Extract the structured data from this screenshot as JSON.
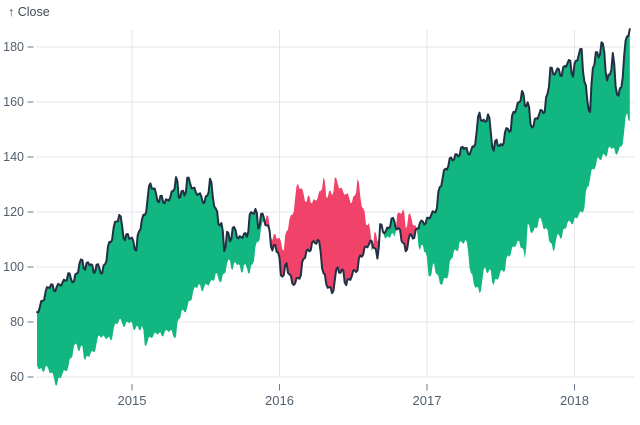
{
  "chart_data": {
    "type": "area",
    "variant": "difference-band",
    "title": "",
    "y_axis_label": "↑ Close",
    "series_name": "Close",
    "xlabel": "",
    "ylabel": "Close",
    "x_ticks": [
      "2015",
      "2016",
      "2017",
      "2018"
    ],
    "y_ticks": [
      60,
      80,
      100,
      120,
      140,
      160,
      180
    ],
    "xlim_years": [
      2014.34,
      2018.42
    ],
    "ylim": [
      55,
      192
    ],
    "grid": true,
    "legend": "none",
    "colors": {
      "positive_fill": "#12b681",
      "negative_fill": "#f1426a",
      "line": "#223044",
      "grid": "#e2e6eb",
      "tick_text": "#525e6d",
      "tick_mark": "#6d7888",
      "axis_label_text": "#3e4a58",
      "background": "#ffffff"
    },
    "x_start_year": 2013.3558,
    "x_step_years": 0.0192308,
    "comparison_shift_weeks": 52,
    "values": [
      64.3,
      63.0,
      62.0,
      63.7,
      63.0,
      61.5,
      59.6,
      56.9,
      59.8,
      61.2,
      62.3,
      63.5,
      66.8,
      71.2,
      71.8,
      69.5,
      71.3,
      66.1,
      67.5,
      68.9,
      69.0,
      72.1,
      75.1,
      74.7,
      74.2,
      74.4,
      73.2,
      77.5,
      79.4,
      80.9,
      79.6,
      78.4,
      80.0,
      80.1,
      77.3,
      78.4,
      77.1,
      78.6,
      71.5,
      73.0,
      74.5,
      75.0,
      75.9,
      76.0,
      74.9,
      76.3,
      76.8,
      77.0,
      75.0,
      74.6,
      81.1,
      84.1,
      83.6,
      85.4,
      87.7,
      90.8,
      92.6,
      93.7,
      91.3,
      92.9,
      93.5,
      94.4,
      95.0,
      97.7,
      95.6,
      94.7,
      97.6,
      101.3,
      102.5,
      99.0,
      101.7,
      101.0,
      97.9,
      100.8,
      99.6,
      97.7,
      101.0,
      107.3,
      109.0,
      114.2,
      116.5,
      118.9,
      115.0,
      109.7,
      112.0,
      110.4,
      109.3,
      106.0,
      113.0,
      117.2,
      118.9,
      124.8,
      130.4,
      128.5,
      126.6,
      123.6,
      125.9,
      123.2,
      124.4,
      125.3,
      127.6,
      132.7,
      125.2,
      127.6,
      126.0,
      132.5,
      130.3,
      128.7,
      127.2,
      126.6,
      125.4,
      123.3,
      125.9,
      132.1,
      125.5,
      121.3,
      115.5,
      116.0,
      105.8,
      112.8,
      109.3,
      114.2,
      113.5,
      110.4,
      110.8,
      112.1,
      111.0,
      119.1,
      119.5,
      121.1,
      114.0,
      119.3,
      117.8,
      115.1,
      113.2,
      106.0,
      108.0,
      105.3,
      97.0,
      97.1,
      101.4,
      97.3,
      94.0,
      94.0,
      96.0,
      96.9,
      103.0,
      105.9,
      105.7,
      109.0,
      108.7,
      109.9,
      105.7,
      97.8,
      93.7,
      92.7,
      90.5,
      95.2,
      99.9,
      97.9,
      98.8,
      93.4,
      95.6,
      96.7,
      98.8,
      98.7,
      104.2,
      104.5,
      107.5,
      108.2,
      109.4,
      106.9,
      103.1,
      115.6,
      112.7,
      113.1,
      114.1,
      117.6,
      116.6,
      113.7,
      113.5,
      108.8,
      105.7,
      110.1,
      111.8,
      110.5,
      114.0,
      116.0,
      116.5,
      115.8,
      117.9,
      119.0,
      120.0,
      121.4,
      129.1,
      132.1,
      135.7,
      136.7,
      139.8,
      139.1,
      141.0,
      140.6,
      143.7,
      143.3,
      141.1,
      142.3,
      143.7,
      149.0,
      156.1,
      153.1,
      152.8,
      155.5,
      149.0,
      142.3,
      146.3,
      144.0,
      144.2,
      149.0,
      150.3,
      149.5,
      156.4,
      157.5,
      159.9,
      164.0,
      158.6,
      159.9,
      151.9,
      151.1,
      154.1,
      155.3,
      157.0,
      156.3,
      163.1,
      172.5,
      170.2,
      171.1,
      171.9,
      169.4,
      173.1,
      174.0,
      175.0,
      169.2,
      175.0,
      177.1,
      179.3,
      167.4,
      160.5,
      156.4,
      172.4,
      178.1,
      176.2,
      181.7,
      178.0,
      167.8,
      170.0,
      177.8,
      165.7,
      162.3,
      165.3,
      176.6,
      183.8,
      186.5
    ]
  }
}
